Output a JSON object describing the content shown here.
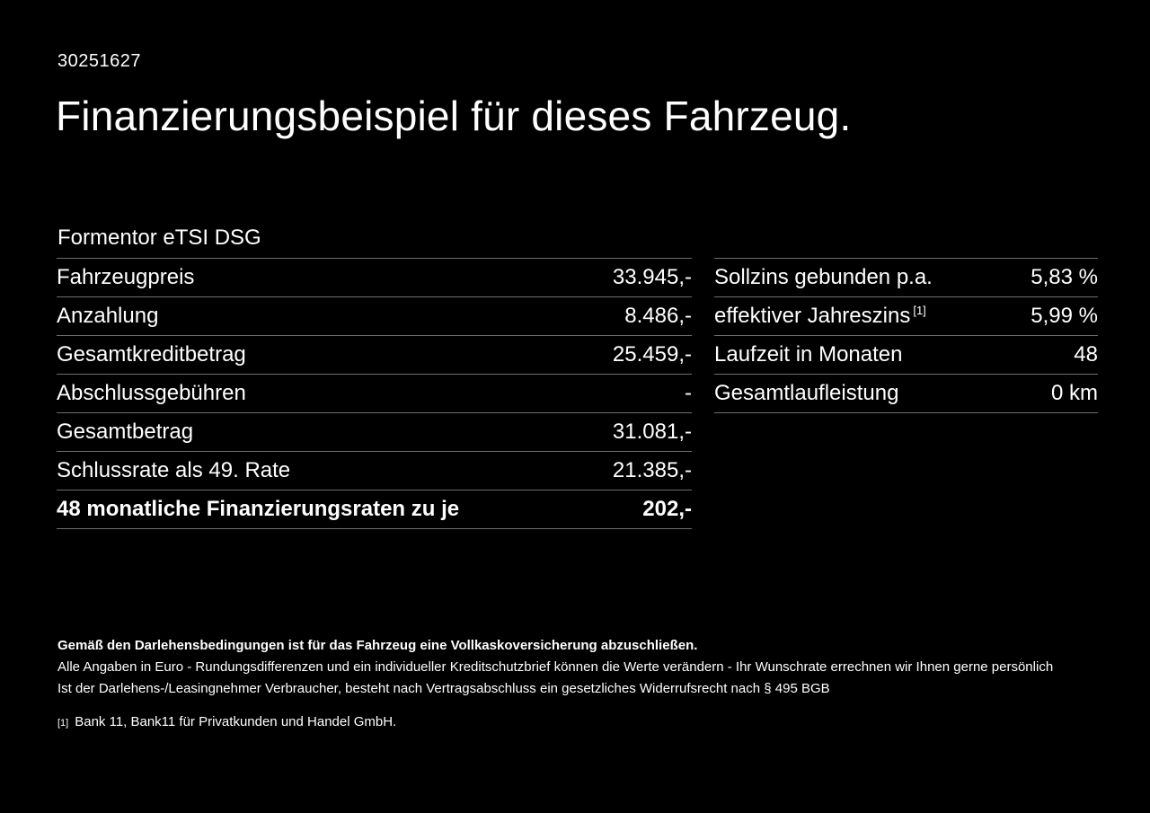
{
  "page": {
    "id_number": "30251627",
    "title": "Finanzierungsbeispiel für dieses Fahrzeug.",
    "model": "Formentor eTSI DSG"
  },
  "finance_table_left": {
    "rows": [
      {
        "label": "Fahrzeugpreis",
        "value": "33.945,-"
      },
      {
        "label": "Anzahlung",
        "value": "8.486,-"
      },
      {
        "label": "Gesamtkreditbetrag",
        "value": "25.459,-"
      },
      {
        "label": "Abschlussgebühren",
        "value": "-"
      },
      {
        "label": "Gesamtbetrag",
        "value": "31.081,-"
      },
      {
        "label": "Schlussrate als 49. Rate",
        "value": "21.385,-"
      },
      {
        "label": "48 monatliche Finanzierungsraten zu je",
        "value": "202,-"
      }
    ]
  },
  "finance_table_right": {
    "rows": [
      {
        "label": "Sollzins gebunden p.a.",
        "superscript": "",
        "value": "5,83 %"
      },
      {
        "label": "effektiver Jahreszins",
        "superscript": "[1]",
        "value": "5,99 %"
      },
      {
        "label": "Laufzeit in Monaten",
        "superscript": "",
        "value": "48"
      },
      {
        "label": "Gesamtlaufleistung",
        "superscript": "",
        "value": "0 km"
      }
    ]
  },
  "footer": {
    "bold_line": "Gemäß den Darlehensbedingungen ist für das Fahrzeug eine Vollkaskoversicherung abzuschließen.",
    "line1": "Alle Angaben in Euro - Rundungsdifferenzen und ein individueller Kreditschutzbrief können die Werte verändern - Ihr Wunschrate errechnen wir Ihnen gerne persönlich",
    "line2": "Ist der Darlehens-/Leasingnehmer Verbraucher, besteht nach Vertragsabschluss ein gesetzliches Widerrufsrecht nach § 495 BGB",
    "footnote_marker": "[1]",
    "footnote_text": "Bank 11, Bank11 für Privatkunden und Handel GmbH."
  },
  "colors": {
    "background": "#000000",
    "text": "#ffffff",
    "divider": "#6e6e6e"
  }
}
